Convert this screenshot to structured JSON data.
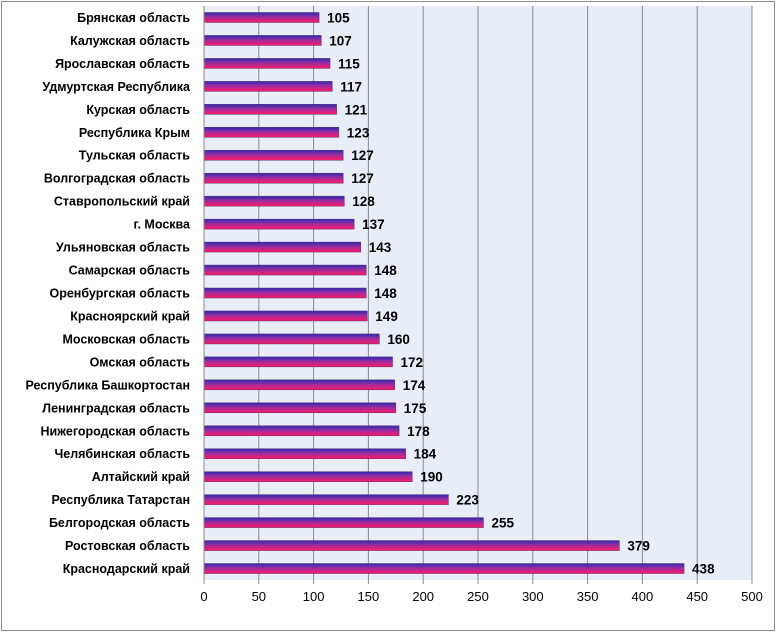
{
  "chart_data": {
    "type": "bar",
    "orientation": "horizontal",
    "categories": [
      "Брянская область",
      "Калужская область",
      "Ярославская область",
      "Удмуртская Республика",
      "Курская область",
      "Республика Крым",
      "Тульская область",
      "Волгоградская область",
      "Ставропольский край",
      "г. Москва",
      "Ульяновская область",
      "Самарская область",
      "Оренбургская область",
      "Красноярский край",
      "Московская область",
      "Омская область",
      "Республика Башкортостан",
      "Ленинградская область",
      "Нижегородская область",
      "Челябинская область",
      "Алтайский край",
      "Республика Татарстан",
      "Белгородская область",
      "Ростовская область",
      "Краснодарский край"
    ],
    "values": [
      105,
      107,
      115,
      117,
      121,
      123,
      127,
      127,
      128,
      137,
      143,
      148,
      148,
      149,
      160,
      172,
      174,
      175,
      178,
      184,
      190,
      223,
      255,
      379,
      438
    ],
    "xlim": [
      0,
      500
    ],
    "x_ticks": [
      0,
      50,
      100,
      150,
      200,
      250,
      300,
      350,
      400,
      450,
      500
    ],
    "grid": "vertical",
    "legend": "none",
    "colors": {
      "plot_background": "#e9edf7",
      "gridline": "#8a8a8a",
      "bar_top": "#2b2bb0",
      "bar_bottom": "#ff1a66"
    }
  }
}
